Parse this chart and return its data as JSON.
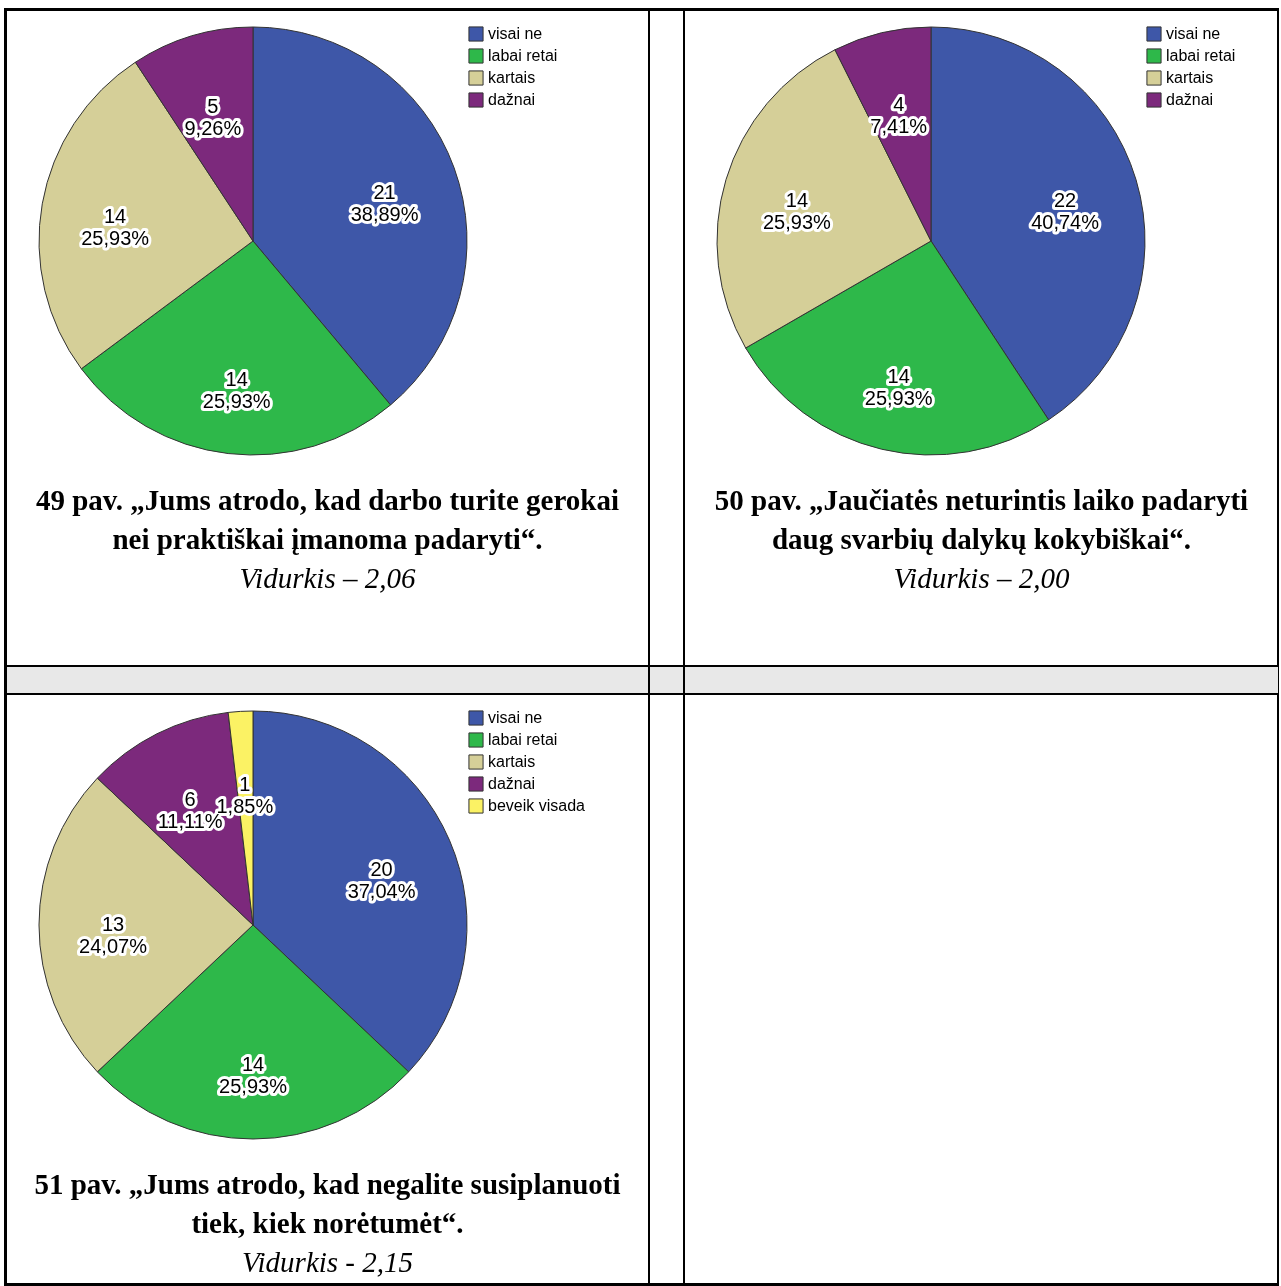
{
  "chart_data": [
    {
      "type": "pie",
      "title": "49 pav. „Jums atrodo, kad darbo turite gerokai nei praktiškai įmanoma padaryti“.",
      "subtitle": "Vidurkis – 2,06",
      "categories": [
        "visai ne",
        "labai retai",
        "kartais",
        "dažnai"
      ],
      "values": [
        21,
        14,
        14,
        5
      ],
      "colors": [
        "#3e57a8",
        "#2eb84a",
        "#d5cf98",
        "#7c297c"
      ],
      "value_labels": [
        "21\n38,89%",
        "14\n25,93%",
        "14\n25,93%",
        "5\n9,26%"
      ],
      "legend": "top right"
    },
    {
      "type": "pie",
      "title": "50 pav. „Jaučiatės neturintis laiko padaryti daug svarbių dalykų kokybiškai“.",
      "subtitle": "Vidurkis – 2,00",
      "categories": [
        "visai ne",
        "labai retai",
        "kartais",
        "dažnai"
      ],
      "values": [
        22,
        14,
        14,
        4
      ],
      "colors": [
        "#3e57a8",
        "#2eb84a",
        "#d5cf98",
        "#7c297c"
      ],
      "value_labels": [
        "22\n40,74%",
        "14\n25,93%",
        "14\n25,93%",
        "4\n7,41%"
      ],
      "legend": "top right"
    },
    {
      "type": "pie",
      "title": "51 pav. „Jums atrodo, kad negalite susiplanuoti tiek, kiek norėtumėt“.",
      "subtitle": "Vidurkis - 2,15",
      "categories": [
        "visai ne",
        "labai retai",
        "kartais",
        "dažnai",
        "beveik visada"
      ],
      "values": [
        20,
        14,
        13,
        6,
        1
      ],
      "colors": [
        "#3e57a8",
        "#2eb84a",
        "#d5cf98",
        "#7c297c",
        "#fbf264"
      ],
      "value_labels": [
        "20\n37,04%",
        "14\n25,93%",
        "13\n24,07%",
        "6\n11,11%",
        "1\n1,85%"
      ],
      "legend": "top right"
    }
  ]
}
